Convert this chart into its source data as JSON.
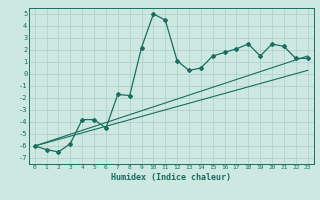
{
  "xlabel": "Humidex (Indice chaleur)",
  "bg_color": "#cce8e0",
  "grid_color": "#aacfc8",
  "line_color": "#1a6e60",
  "xlim": [
    -0.5,
    23.5
  ],
  "ylim": [
    -7.5,
    5.5
  ],
  "xticks": [
    0,
    1,
    2,
    3,
    4,
    5,
    6,
    7,
    8,
    9,
    10,
    11,
    12,
    13,
    14,
    15,
    16,
    17,
    18,
    19,
    20,
    21,
    22,
    23
  ],
  "yticks": [
    -7,
    -6,
    -5,
    -4,
    -3,
    -2,
    -1,
    0,
    1,
    2,
    3,
    4,
    5
  ],
  "main_x": [
    0,
    1,
    2,
    3,
    4,
    5,
    6,
    7,
    8,
    9,
    10,
    11,
    12,
    13,
    14,
    15,
    16,
    17,
    18,
    19,
    20,
    21,
    22,
    23
  ],
  "main_y": [
    -6.0,
    -6.3,
    -6.5,
    -5.8,
    -3.8,
    -3.8,
    -4.5,
    -1.7,
    -1.8,
    2.2,
    5.0,
    4.5,
    1.1,
    0.3,
    0.5,
    1.5,
    1.8,
    2.1,
    2.5,
    1.5,
    2.5,
    2.3,
    1.3,
    1.3
  ],
  "line2_x": [
    0,
    23
  ],
  "line2_y": [
    -6.0,
    0.3
  ],
  "line3_x": [
    0,
    23
  ],
  "line3_y": [
    -6.0,
    1.5
  ]
}
